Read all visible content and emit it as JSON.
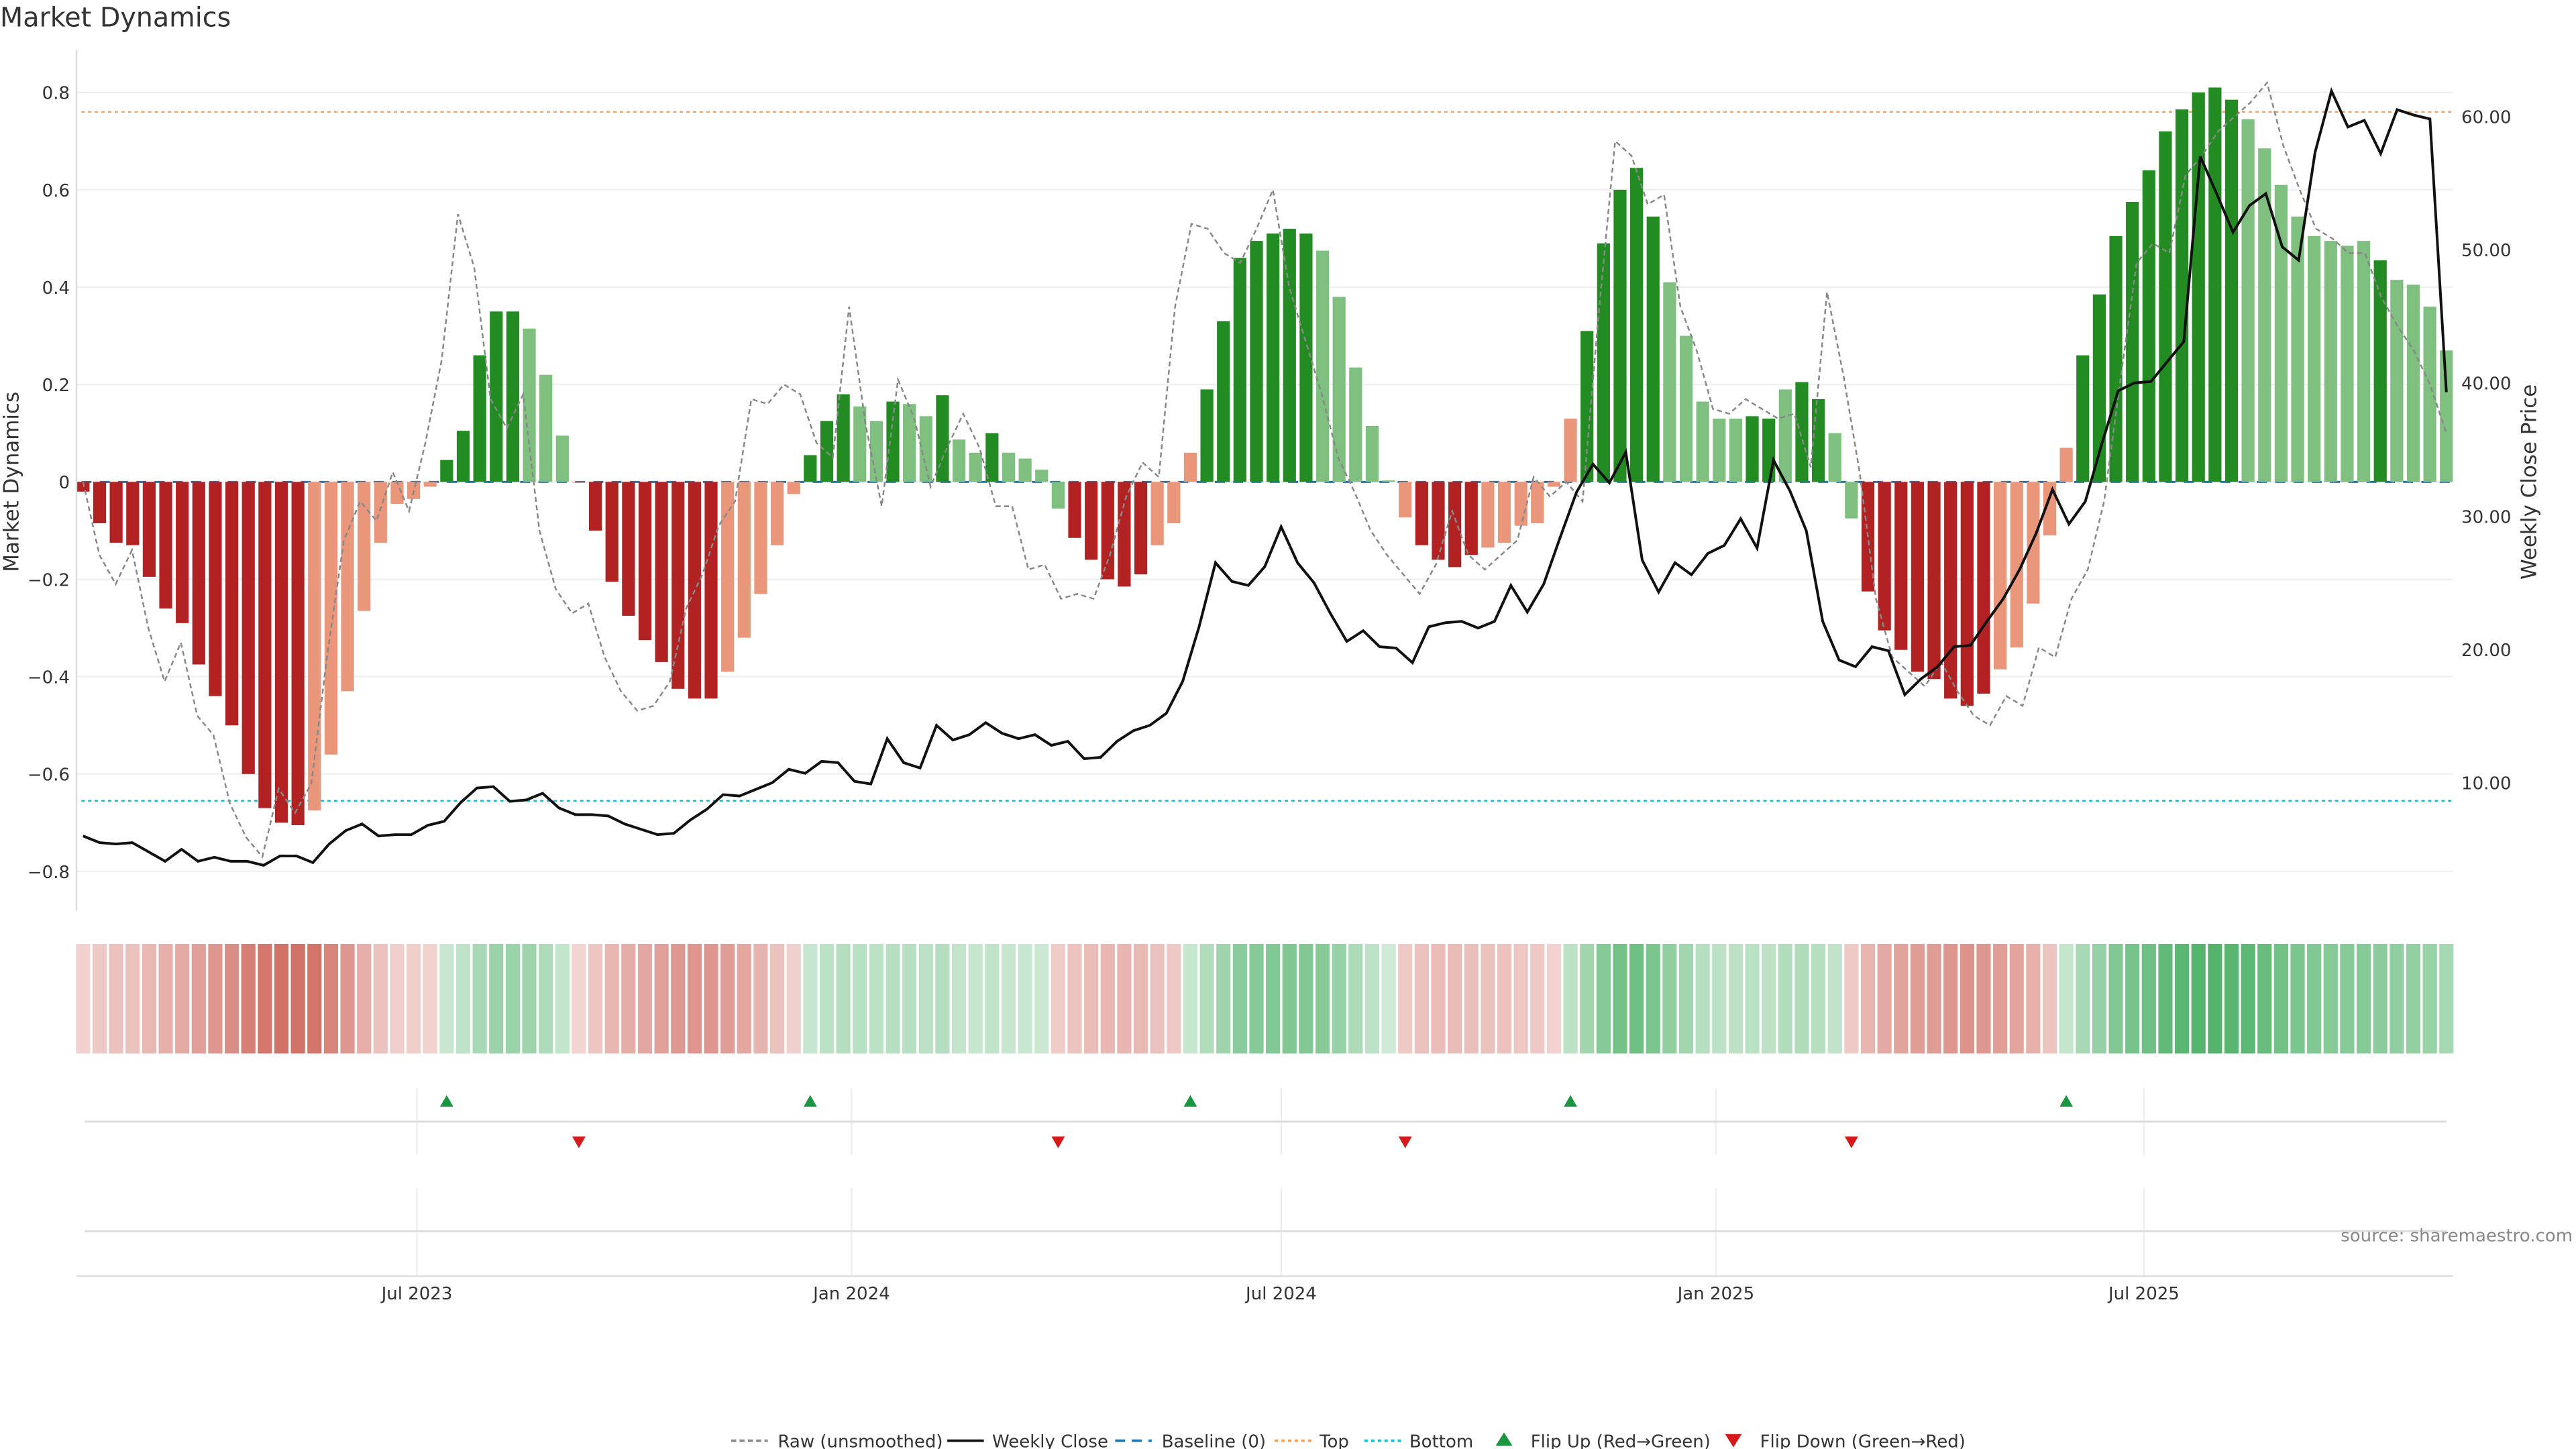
{
  "chart_data": {
    "type": "bar",
    "title": "Market Dynamics",
    "ylabel": "Market Dynamics",
    "ylabel_right": "Weekly Close Price",
    "ylim": [
      -0.88,
      0.88
    ],
    "ylim_right": [
      0,
      65
    ],
    "y_ticks_left": [
      "0.8",
      "0.6",
      "0.4",
      "0.2",
      "0",
      "−0.2",
      "−0.4",
      "−0.6",
      "−0.8"
    ],
    "y_tick_values_left": [
      0.8,
      0.6,
      0.4,
      0.2,
      0,
      -0.2,
      -0.4,
      -0.6,
      -0.8
    ],
    "y_ticks_right": [
      "60.00",
      "50.00",
      "40.00",
      "30.00",
      "20.00",
      "10.00"
    ],
    "y_tick_values_right": [
      60,
      50,
      40,
      30,
      20,
      10
    ],
    "x_ticks": [
      "Jul 2023",
      "Jan 2024",
      "Jul 2024",
      "Jan 2025",
      "Jul 2025"
    ],
    "x_tick_bar_index": [
      20.2,
      46.5,
      72.5,
      98.8,
      124.7
    ],
    "top_level": 0.76,
    "bottom_level": -0.655,
    "colors": {
      "strong_red": "#b22222",
      "weak_red": "#e9967a",
      "strong_green": "#228b22",
      "weak_green": "#7fbf7f",
      "raw": "#888888",
      "close": "#111111",
      "baseline": "#1f77b4",
      "top": "#f4a460",
      "bottom": "#17becf",
      "flip_up": "#1a9641",
      "flip_down": "#d7191c"
    },
    "bars": {
      "values": [
        -0.02,
        -0.085,
        -0.125,
        -0.13,
        -0.195,
        -0.26,
        -0.29,
        -0.375,
        -0.44,
        -0.5,
        -0.6,
        -0.67,
        -0.7,
        -0.705,
        -0.675,
        -0.56,
        -0.43,
        -0.265,
        -0.125,
        -0.045,
        -0.035,
        -0.01,
        0.045,
        0.105,
        0.26,
        0.35,
        0.35,
        0.315,
        0.22,
        0.095,
        0,
        -0.1,
        -0.205,
        -0.275,
        -0.325,
        -0.37,
        -0.425,
        -0.445,
        -0.445,
        -0.39,
        -0.32,
        -0.23,
        -0.13,
        -0.025,
        0.055,
        0.125,
        0.18,
        0.155,
        0.125,
        0.165,
        0.16,
        0.135,
        0.178,
        0.087,
        0.06,
        0.1,
        0.06,
        0.048,
        0.025,
        -0.055,
        -0.115,
        -0.16,
        -0.2,
        -0.215,
        -0.19,
        -0.13,
        -0.085,
        0.06,
        0.19,
        0.33,
        0.46,
        0.495,
        0.51,
        0.52,
        0.51,
        0.475,
        0.38,
        0.235,
        0.115,
        0.003,
        -0.073,
        -0.13,
        -0.16,
        -0.175,
        -0.15,
        -0.135,
        -0.125,
        -0.09,
        -0.085,
        -0.01,
        0.13,
        0.31,
        0.49,
        0.6,
        0.645,
        0.545,
        0.41,
        0.3,
        0.165,
        0.13,
        0.13,
        0.135,
        0.13,
        0.19,
        0.205,
        0.17,
        0.1,
        -0.075,
        -0.225,
        -0.305,
        -0.345,
        -0.39,
        -0.405,
        -0.445,
        -0.46,
        -0.435,
        -0.385,
        -0.34,
        -0.25,
        -0.11,
        0.07,
        0.26,
        0.385,
        0.505,
        0.575,
        0.64,
        0.72,
        0.765,
        0.8,
        0.81,
        0.785,
        0.745,
        0.685,
        0.61,
        0.545,
        0.505,
        0.495,
        0.485,
        0.495,
        0.455,
        0.415,
        0.405,
        0.36,
        0.27
      ],
      "states": "DDDDDDDDDDDDDDLLLLLLLLGGGGGgggLDDDDDDDDLLLLLGGGggGggGggGggggDDDDDLLLGGGGGGGgggggLDDDDLLLLLLGGGGGgggggGGgGGggDDDDDDDDLLLLLGGGGGGGGGGggggggggGggggg"
    },
    "raw": [
      0,
      -0.15,
      -0.21,
      -0.14,
      -0.3,
      -0.41,
      -0.33,
      -0.48,
      -0.52,
      -0.66,
      -0.73,
      -0.77,
      -0.63,
      -0.68,
      -0.62,
      -0.35,
      -0.12,
      -0.04,
      -0.08,
      0.02,
      -0.06,
      0.08,
      0.25,
      0.55,
      0.44,
      0.17,
      0.11,
      0.18,
      -0.1,
      -0.22,
      -0.27,
      -0.25,
      -0.36,
      -0.43,
      -0.47,
      -0.46,
      -0.41,
      -0.26,
      -0.19,
      -0.09,
      -0.04,
      0.17,
      0.16,
      0.2,
      0.18,
      0.08,
      0.05,
      0.36,
      0.12,
      -0.05,
      0.21,
      0.13,
      -0.01,
      0.07,
      0.14,
      0.07,
      -0.05,
      -0.05,
      -0.18,
      -0.17,
      -0.24,
      -0.23,
      -0.24,
      -0.15,
      -0.03,
      0.04,
      0.01,
      0.36,
      0.53,
      0.52,
      0.47,
      0.45,
      0.52,
      0.6,
      0.4,
      0.29,
      0.18,
      0.05,
      -0.02,
      -0.1,
      -0.15,
      -0.19,
      -0.23,
      -0.17,
      -0.06,
      -0.15,
      -0.18,
      -0.15,
      -0.12,
      0.01,
      -0.03,
      0,
      -0.04,
      0.35,
      0.7,
      0.67,
      0.57,
      0.59,
      0.36,
      0.27,
      0.15,
      0.14,
      0.17,
      0.15,
      0.13,
      0.14,
      0.03,
      0.39,
      0.22,
      0.02,
      -0.24,
      -0.36,
      -0.39,
      -0.42,
      -0.37,
      -0.43,
      -0.48,
      -0.5,
      -0.44,
      -0.46,
      -0.34,
      -0.36,
      -0.24,
      -0.18,
      -0.04,
      0.21,
      0.45,
      0.49,
      0.47,
      0.63,
      0.67,
      0.72,
      0.75,
      0.78,
      0.82,
      0.69,
      0.6,
      0.52,
      0.5,
      0.47,
      0.47,
      0.38,
      0.32,
      0.27,
      0.2,
      0.1
    ],
    "close": [
      6.0,
      5.5,
      5.4,
      5.5,
      4.8,
      4.1,
      5.0,
      4.1,
      4.4,
      4.1,
      4.1,
      3.8,
      4.5,
      4.5,
      4.0,
      5.4,
      6.4,
      6.9,
      6.0,
      6.1,
      6.1,
      6.8,
      7.1,
      8.5,
      9.6,
      9.7,
      8.6,
      8.7,
      9.2,
      8.1,
      7.6,
      7.6,
      7.5,
      6.9,
      6.5,
      6.1,
      6.2,
      7.2,
      8.0,
      9.1,
      9.0,
      9.5,
      10.0,
      11.0,
      10.7,
      11.6,
      11.5,
      10.1,
      9.9,
      13.3,
      11.5,
      11.1,
      14.3,
      13.2,
      13.6,
      14.5,
      13.7,
      13.3,
      13.6,
      12.8,
      13.1,
      11.8,
      11.9,
      13.1,
      13.9,
      14.3,
      15.2,
      17.6,
      21.7,
      26.5,
      25.1,
      24.8,
      26.2,
      29.2,
      26.5,
      25.0,
      22.7,
      20.6,
      21.4,
      20.2,
      20.1,
      19.0,
      21.7,
      22.0,
      22.1,
      21.6,
      22.1,
      24.8,
      22.8,
      24.9,
      28.4,
      31.8,
      33.9,
      32.5,
      34.8,
      26.7,
      24.3,
      26.5,
      25.6,
      27.2,
      27.8,
      29.8,
      27.6,
      34.2,
      31.9,
      28.9,
      22.1,
      19.2,
      18.7,
      20.2,
      19.9,
      16.6,
      17.8,
      18.7,
      20.2,
      20.3,
      22.1,
      23.8,
      26.0,
      28.7,
      32.0,
      29.4,
      31.1,
      35.4,
      39.4,
      40.0,
      40.1,
      41.6,
      43.1,
      57.0,
      54.2,
      51.3,
      53.3,
      54.2,
      50.2,
      49.2,
      57.3,
      61.9,
      59.2,
      59.7,
      57.2,
      60.5,
      60.1,
      59.8,
      39.3
    ],
    "flip_up_bar_index": [
      22,
      44,
      67,
      90,
      120
    ],
    "flip_down_bar_index": [
      30,
      59,
      80,
      107
    ],
    "legend": [
      "Raw (unsmoothed)",
      "Weekly Close",
      "Baseline (0)",
      "Top",
      "Bottom",
      "Flip Up (Red→Green)",
      "Flip Down (Green→Red)"
    ],
    "legend_placement": "bottom-center",
    "source": "source: sharemaestro.com"
  }
}
